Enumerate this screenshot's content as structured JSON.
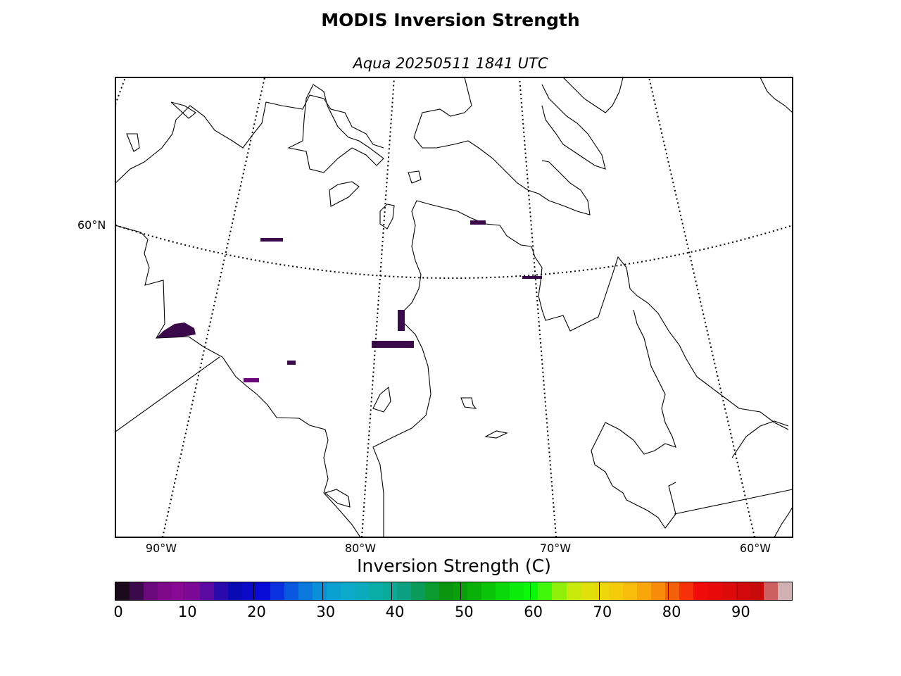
{
  "title": "MODIS Inversion Strength",
  "subtitle": "Aqua 20250511 1841 UTC",
  "map": {
    "projection": "polar/lambert conic view of Hudson Bay / Labrador region",
    "graticule": {
      "latitudes": [
        {
          "value": 60,
          "label": "60°N"
        }
      ],
      "longitudes": [
        {
          "value": -90,
          "label": "90°W"
        },
        {
          "value": -80,
          "label": "80°W"
        },
        {
          "value": -70,
          "label": "70°W"
        },
        {
          "value": -60,
          "label": "60°W"
        }
      ],
      "style": "dotted"
    },
    "data_field": "Inversion strength (sparse cells, mostly 0–10 C, purple)",
    "coastline_color": "#000000",
    "background": "#ffffff"
  },
  "colorbar": {
    "label": "Inversion Strength (C)",
    "min": 0,
    "max": 98,
    "ticks": [
      {
        "value": 0,
        "label": "0"
      },
      {
        "value": 10,
        "label": "10"
      },
      {
        "value": 20,
        "label": "20"
      },
      {
        "value": 30,
        "label": "30"
      },
      {
        "value": 40,
        "label": "40"
      },
      {
        "value": 50,
        "label": "50"
      },
      {
        "value": 60,
        "label": "60"
      },
      {
        "value": 70,
        "label": "70"
      },
      {
        "value": 80,
        "label": "80"
      },
      {
        "value": 90,
        "label": "90"
      }
    ],
    "colors": [
      "#1a0a1a",
      "#3a0a4a",
      "#6a0a7a",
      "#7e0a8a",
      "#880a94",
      "#7a0a96",
      "#5a0aa0",
      "#2a0aaa",
      "#0a0ab4",
      "#0a0ac8",
      "#0a0ad8",
      "#0a30e0",
      "#0a58e0",
      "#0a78dc",
      "#0a90d8",
      "#0aa0d0",
      "#0aaac8",
      "#0aacbc",
      "#0aaca8",
      "#0aaa98",
      "#0aa080",
      "#0a9a5a",
      "#0a9a30",
      "#0a9410",
      "#0aa00a",
      "#0ab00a",
      "#0ac40a",
      "#0ad80a",
      "#0aec0a",
      "#0af80a",
      "#40f80a",
      "#90f00a",
      "#c8ea0a",
      "#e0e00a",
      "#ecd80a",
      "#f4cc0a",
      "#f8bc0a",
      "#f8a60a",
      "#f88c0a",
      "#f4600a",
      "#f8300a",
      "#f00a0a",
      "#e80a0a",
      "#dc0a0a",
      "#d00a0a",
      "#c80a0a",
      "#cc6060",
      "#d0b0b0"
    ]
  }
}
